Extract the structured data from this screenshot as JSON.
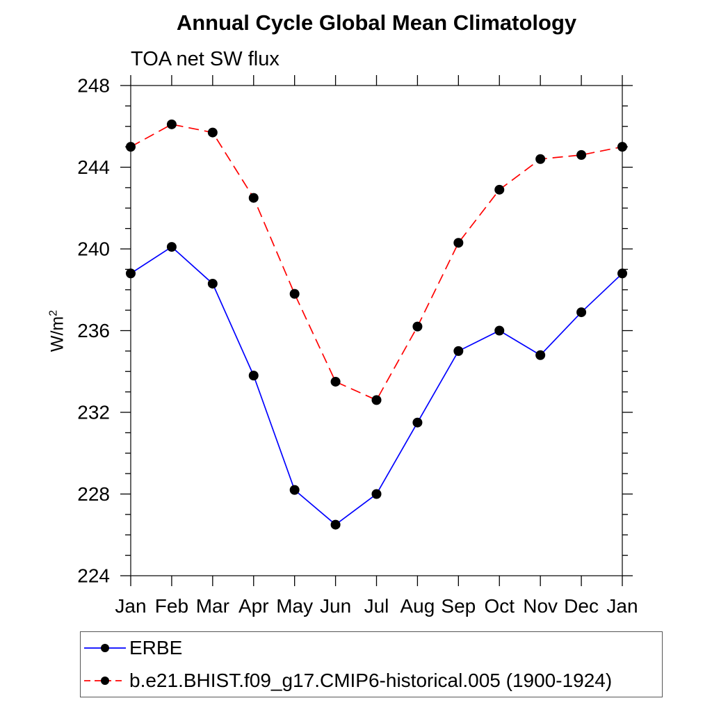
{
  "chart_data": {
    "type": "line",
    "title": "Annual Cycle Global Mean Climatology",
    "subtitle": "TOA net SW flux",
    "ylabel": "W/m²",
    "ylabel_base": "W/m",
    "ylabel_sup": "2",
    "x_tick_labels": [
      "Jan",
      "Feb",
      "Mar",
      "Apr",
      "May",
      "Jun",
      "Jul",
      "Aug",
      "Sep",
      "Oct",
      "Nov",
      "Dec",
      "Jan"
    ],
    "ylim": [
      224,
      248
    ],
    "y_major_tick_step": 4,
    "y_minor_tick_step": 1,
    "y_tick_labels": [
      "224",
      "228",
      "232",
      "236",
      "240",
      "244",
      "248"
    ],
    "grid": false,
    "legend_position": "bottom-left",
    "series": [
      {
        "name": "ERBE",
        "line_color": "#0000ff",
        "line_style": "solid",
        "marker": "filled-circle",
        "marker_color": "#000000",
        "values": [
          238.8,
          240.1,
          238.3,
          233.8,
          228.2,
          226.5,
          228.0,
          231.5,
          235.0,
          236.0,
          234.8,
          236.9,
          238.8
        ]
      },
      {
        "name": "b.e21.BHIST.f09_g17.CMIP6-historical.005 (1900-1924)",
        "line_color": "#ff0000",
        "line_style": "dashed",
        "marker": "filled-circle",
        "marker_color": "#000000",
        "values": [
          245.0,
          246.1,
          245.7,
          242.5,
          237.8,
          233.5,
          232.6,
          236.2,
          240.3,
          242.9,
          244.4,
          244.6,
          245.0
        ]
      }
    ]
  }
}
